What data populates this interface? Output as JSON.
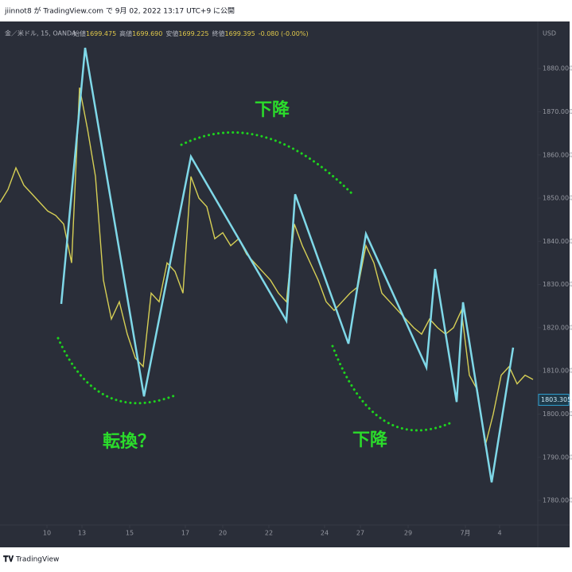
{
  "header": "jiinnot8 が TradingView.com で 9月 02, 2022 13:17 UTC+9 に公開",
  "footer": "TradingView",
  "chart_data": {
    "type": "line",
    "symbol": "金／米ドル, 15, OANDA",
    "ohlc": [
      {
        "label": "始値",
        "value": "1699.475"
      },
      {
        "label": "高値",
        "value": "1699.690"
      },
      {
        "label": "安値",
        "value": "1699.225"
      },
      {
        "label": "終値",
        "value": "1699.395"
      }
    ],
    "change": "-0.080 (-0.00%)",
    "currency": "USD",
    "series": [
      {
        "color": "#d6cf55",
        "x": [
          0,
          1,
          2,
          3,
          4,
          5,
          6,
          7,
          8,
          9,
          10,
          11,
          12,
          13,
          14,
          15,
          16,
          17,
          18,
          19,
          20,
          21,
          22,
          23,
          24,
          25,
          26,
          27,
          28,
          29,
          30,
          31,
          32,
          33,
          34,
          35,
          36,
          37,
          38,
          39,
          40,
          41,
          42,
          43,
          44,
          45,
          46,
          47,
          48,
          49,
          50,
          51,
          52,
          53,
          54,
          55,
          56,
          57,
          58,
          59,
          60,
          61,
          62,
          63,
          64,
          65,
          66,
          67
        ],
        "values": [
          1849,
          1852,
          1857,
          1853,
          1851,
          1849,
          1847,
          1846,
          1844,
          1835,
          1875.6,
          1866,
          1855,
          1831,
          1822,
          1826,
          1818.5,
          1813,
          1811,
          1828,
          1826,
          1835,
          1833,
          1828,
          1855,
          1850,
          1848,
          1840.6,
          1842,
          1839,
          1840.6,
          1837,
          1835,
          1833,
          1831,
          1828,
          1826,
          1844,
          1839,
          1835,
          1831,
          1826,
          1824,
          1826,
          1828,
          1829.5,
          1839,
          1835,
          1828,
          1826,
          1824,
          1822,
          1820,
          1818.5,
          1822,
          1820,
          1818.5,
          1820,
          1824,
          1809,
          1805.6,
          1792.7,
          1800,
          1809,
          1811,
          1807,
          1809,
          1808
        ]
      },
      {
        "color": "#7fd8e8",
        "x": [
          7.7,
          10.7,
          18.1,
          24,
          36,
          37.1,
          43.8,
          46,
          53.6,
          54.7,
          57.4,
          58.2,
          61.8,
          64.5
        ],
        "values": [
          1825.5,
          1884.8,
          1804.1,
          1859.6,
          1821.6,
          1850.9,
          1816.3,
          1841.7,
          1810.8,
          1833.6,
          1802.8,
          1825.9,
          1784.2,
          1815.4
        ]
      }
    ],
    "last_price": 1803.305,
    "xlim": [
      0,
      67.6
    ],
    "ylim": [
      1774.3,
      1890.9
    ],
    "xticks": [
      {
        "value": 5.9,
        "label": "10"
      },
      {
        "value": 10.3,
        "label": "13"
      },
      {
        "value": 16.3,
        "label": "15"
      },
      {
        "value": 23.3,
        "label": "17"
      },
      {
        "value": 28,
        "label": "20"
      },
      {
        "value": 33.8,
        "label": "22"
      },
      {
        "value": 40.8,
        "label": "24"
      },
      {
        "value": 45.3,
        "label": "27"
      },
      {
        "value": 51.3,
        "label": "29"
      },
      {
        "value": 58.5,
        "label": "7月"
      },
      {
        "value": 62.8,
        "label": "4"
      }
    ],
    "yticks": [
      {
        "value": 1780,
        "label": "1780.000"
      },
      {
        "value": 1790,
        "label": "1790.000"
      },
      {
        "value": 1800,
        "label": "1800.000"
      },
      {
        "value": 1810,
        "label": "1810.000"
      },
      {
        "value": 1820,
        "label": "1820.000"
      },
      {
        "value": 1830,
        "label": "1830.000"
      },
      {
        "value": 1840,
        "label": "1840.000"
      },
      {
        "value": 1850,
        "label": "1850.000"
      },
      {
        "value": 1860,
        "label": "1860.000"
      },
      {
        "value": 1870,
        "label": "1870.000"
      },
      {
        "value": 1880,
        "label": "1880.000"
      }
    ],
    "annotations": [
      "転換？",
      "下降",
      "下降"
    ]
  }
}
